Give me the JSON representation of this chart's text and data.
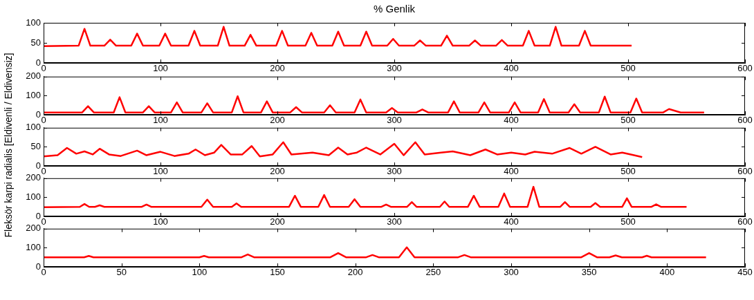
{
  "chart_data": [
    {
      "type": "line",
      "title": "% Genlik",
      "color": "#ff0000",
      "xlim": [
        0,
        600
      ],
      "xticks": [
        0,
        100,
        200,
        300,
        400,
        500,
        600
      ],
      "ylim": [
        0,
        100
      ],
      "yticks": [
        0,
        50,
        100
      ],
      "x": [
        0,
        30,
        35,
        40,
        52,
        57,
        62,
        75,
        80,
        85,
        99,
        104,
        109,
        124,
        129,
        134,
        149,
        154,
        159,
        172,
        177,
        182,
        199,
        204,
        209,
        224,
        229,
        234,
        247,
        252,
        257,
        271,
        276,
        281,
        294,
        299,
        304,
        317,
        322,
        327,
        340,
        345,
        350,
        364,
        369,
        374,
        387,
        392,
        397,
        410,
        415,
        420,
        433,
        438,
        443,
        458,
        463,
        468,
        503
      ],
      "values": [
        42,
        43,
        85,
        43,
        43,
        58,
        43,
        43,
        73,
        43,
        43,
        73,
        43,
        43,
        80,
        43,
        43,
        90,
        43,
        43,
        70,
        43,
        43,
        80,
        43,
        43,
        75,
        43,
        43,
        78,
        43,
        43,
        78,
        43,
        43,
        60,
        43,
        43,
        56,
        43,
        43,
        68,
        43,
        43,
        56,
        43,
        43,
        57,
        43,
        43,
        80,
        43,
        43,
        90,
        43,
        43,
        80,
        43,
        43
      ]
    },
    {
      "type": "line",
      "color": "#ff0000",
      "xlim": [
        0,
        600
      ],
      "xticks": [
        0,
        100,
        200,
        300,
        400,
        500,
        600
      ],
      "ylim": [
        0,
        200
      ],
      "yticks": [
        0,
        100,
        200
      ],
      "x": [
        0,
        33,
        38,
        43,
        60,
        65,
        70,
        85,
        90,
        95,
        109,
        114,
        119,
        135,
        140,
        145,
        161,
        166,
        171,
        186,
        191,
        196,
        211,
        216,
        221,
        240,
        245,
        250,
        266,
        271,
        276,
        293,
        298,
        303,
        319,
        324,
        329,
        346,
        351,
        356,
        372,
        377,
        382,
        398,
        403,
        408,
        423,
        428,
        433,
        449,
        454,
        459,
        475,
        480,
        485,
        502,
        507,
        512,
        530,
        535,
        545,
        565
      ],
      "values": [
        12,
        12,
        45,
        12,
        12,
        92,
        12,
        12,
        45,
        12,
        12,
        65,
        12,
        12,
        60,
        12,
        12,
        97,
        12,
        12,
        70,
        12,
        12,
        40,
        12,
        12,
        50,
        12,
        12,
        80,
        12,
        12,
        35,
        12,
        12,
        28,
        12,
        12,
        70,
        12,
        12,
        65,
        12,
        12,
        65,
        12,
        12,
        82,
        12,
        12,
        55,
        12,
        12,
        95,
        12,
        12,
        85,
        12,
        12,
        30,
        12,
        12
      ]
    },
    {
      "type": "line",
      "ylabel": "Fleksör karpi radialis [Eldivenli / Eldivensiz]",
      "color": "#ff0000",
      "xlim": [
        0,
        600
      ],
      "xticks": [
        0,
        100,
        200,
        300,
        400,
        500,
        600
      ],
      "ylim": [
        0,
        100
      ],
      "yticks": [
        0,
        50,
        100
      ],
      "x": [
        0,
        12,
        20,
        28,
        35,
        42,
        48,
        56,
        66,
        80,
        88,
        100,
        112,
        124,
        130,
        138,
        146,
        152,
        160,
        170,
        178,
        185,
        196,
        205,
        212,
        230,
        244,
        252,
        260,
        268,
        276,
        288,
        300,
        308,
        318,
        326,
        340,
        350,
        365,
        378,
        388,
        400,
        412,
        420,
        435,
        450,
        460,
        472,
        485,
        495,
        505,
        512
      ],
      "values": [
        25,
        28,
        47,
        32,
        38,
        30,
        45,
        30,
        26,
        40,
        28,
        37,
        26,
        32,
        43,
        28,
        35,
        55,
        30,
        30,
        52,
        25,
        30,
        62,
        30,
        35,
        28,
        48,
        30,
        35,
        48,
        30,
        58,
        28,
        62,
        30,
        35,
        38,
        28,
        43,
        30,
        35,
        30,
        37,
        32,
        47,
        32,
        50,
        30,
        35,
        28,
        23
      ]
    },
    {
      "type": "line",
      "color": "#ff0000",
      "xlim": [
        0,
        600
      ],
      "xticks": [
        0,
        100,
        200,
        300,
        400,
        500,
        600
      ],
      "ylim": [
        0,
        200
      ],
      "yticks": [
        0,
        100,
        200
      ],
      "x": [
        0,
        31,
        35,
        39,
        44,
        48,
        52,
        84,
        88,
        92,
        135,
        140,
        145,
        161,
        165,
        169,
        210,
        215,
        220,
        235,
        240,
        245,
        261,
        266,
        271,
        289,
        293,
        297,
        311,
        315,
        319,
        339,
        343,
        347,
        363,
        368,
        373,
        389,
        394,
        399,
        414,
        419,
        424,
        442,
        446,
        450,
        468,
        472,
        476,
        495,
        499,
        503,
        520,
        524,
        528,
        550
      ],
      "values": [
        48,
        50,
        65,
        50,
        50,
        58,
        50,
        50,
        62,
        50,
        50,
        88,
        50,
        50,
        68,
        50,
        50,
        108,
        50,
        50,
        112,
        50,
        50,
        90,
        50,
        50,
        62,
        50,
        50,
        75,
        50,
        50,
        78,
        50,
        50,
        108,
        50,
        50,
        120,
        50,
        50,
        155,
        50,
        50,
        75,
        50,
        50,
        70,
        50,
        50,
        95,
        50,
        50,
        63,
        50,
        50
      ]
    },
    {
      "type": "line",
      "color": "#ff0000",
      "xlim": [
        0,
        450
      ],
      "xticks": [
        0,
        50,
        100,
        150,
        200,
        250,
        300,
        350,
        400,
        450
      ],
      "ylim": [
        0,
        200
      ],
      "yticks": [
        0,
        100,
        200
      ],
      "x": [
        0,
        26,
        29,
        32,
        100,
        103,
        106,
        127,
        131,
        135,
        184,
        189,
        194,
        207,
        211,
        215,
        228,
        233,
        238,
        266,
        270,
        274,
        345,
        350,
        355,
        363,
        367,
        371,
        384,
        387,
        390,
        425
      ],
      "values": [
        50,
        50,
        57,
        50,
        50,
        57,
        50,
        50,
        65,
        50,
        50,
        72,
        50,
        50,
        62,
        50,
        50,
        102,
        50,
        50,
        62,
        50,
        50,
        72,
        50,
        50,
        60,
        50,
        50,
        58,
        50,
        50
      ]
    }
  ]
}
